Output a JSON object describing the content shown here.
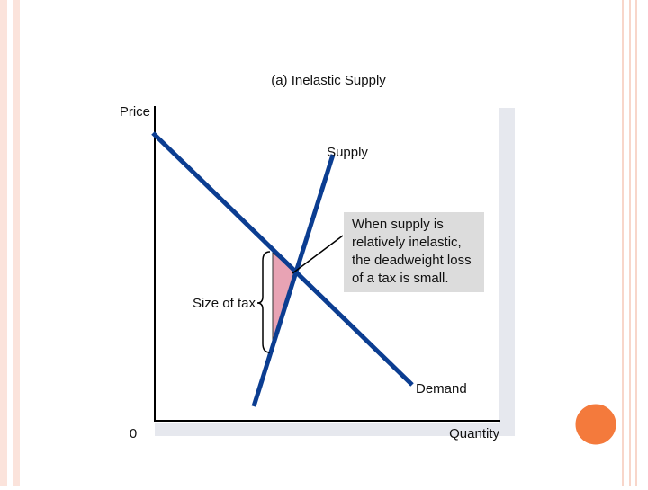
{
  "title": "(a) Inelastic Supply",
  "axes": {
    "y_label": "Price",
    "x_label": "Quantity",
    "origin": "0"
  },
  "curves": {
    "supply": "Supply",
    "demand": "Demand"
  },
  "tax_label": "Size of tax",
  "callout": {
    "lines": [
      "When supply is",
      "relatively inelastic,",
      "the deadweight loss",
      "of a tax is small."
    ]
  }
}
